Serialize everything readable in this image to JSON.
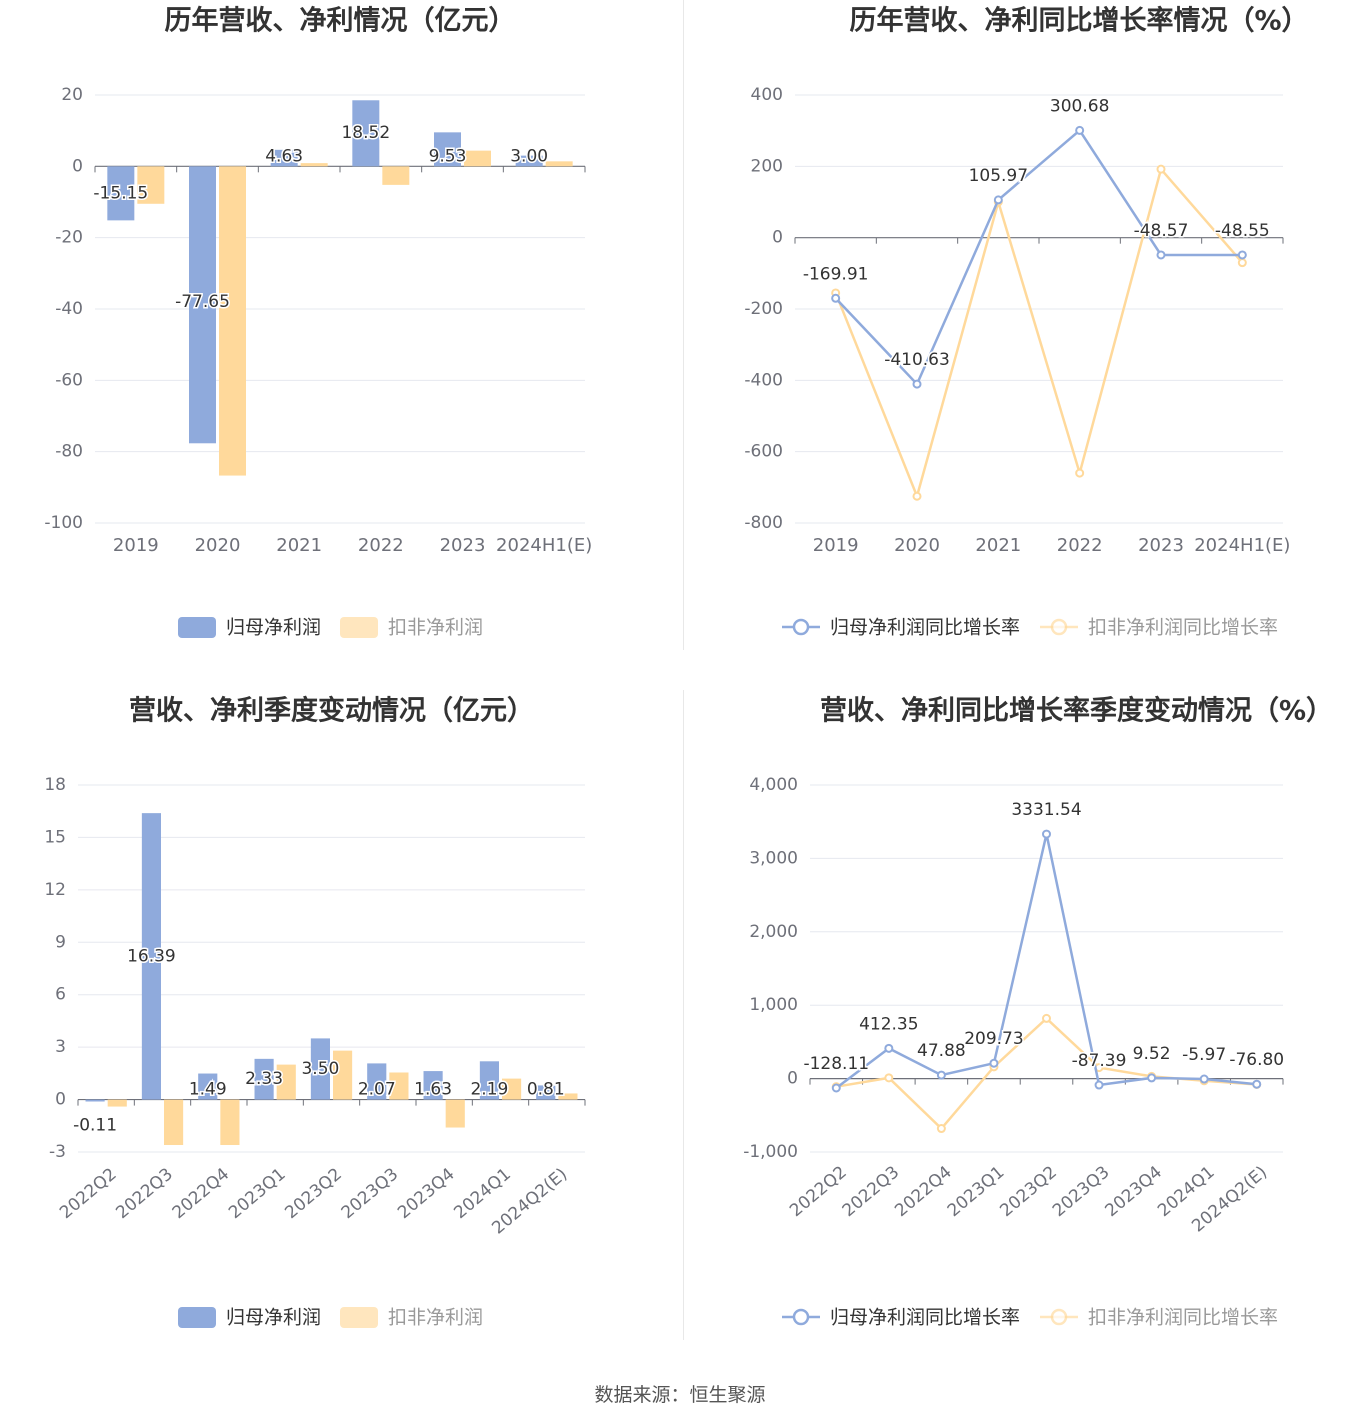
{
  "colors": {
    "series1": "#8faadc",
    "series2": "#ffd99b",
    "grid": "#e6e8ef",
    "axis": "#6e7079",
    "tick_text": "#6e7079",
    "title": "#333333",
    "label": "#333333"
  },
  "chart_data": [
    {
      "type": "bar",
      "title": "历年营收、净利情况（亿元）",
      "categories": [
        "2019",
        "2020",
        "2021",
        "2022",
        "2023",
        "2024H1(E)"
      ],
      "ylim": [
        -100,
        20
      ],
      "yticks": [
        20,
        0,
        -20,
        -40,
        -60,
        -80,
        -100
      ],
      "series": [
        {
          "name": "归母净利润",
          "values": [
            -15.15,
            -77.65,
            4.63,
            18.52,
            9.53,
            3.0
          ],
          "labels": [
            "-15.15",
            "-77.65",
            "4.63",
            "18.52",
            "9.53",
            "3.00"
          ]
        },
        {
          "name": "扣非净利润",
          "values": [
            -10.5,
            -86.7,
            0.9,
            -5.2,
            4.4,
            1.4
          ]
        }
      ]
    },
    {
      "type": "line",
      "title": "历年营收、净利同比增长率情况（%）",
      "categories": [
        "2019",
        "2020",
        "2021",
        "2022",
        "2023",
        "2024H1(E)"
      ],
      "ylim": [
        -800,
        400
      ],
      "yticks": [
        400,
        200,
        0,
        -200,
        -400,
        -600,
        -800
      ],
      "series": [
        {
          "name": "归母净利润同比增长率",
          "values": [
            -169.91,
            -410.63,
            105.97,
            300.68,
            -48.57,
            -48.55
          ],
          "labels": [
            "-169.91",
            "-410.63",
            "105.97",
            "300.68",
            "-48.57",
            "-48.55"
          ]
        },
        {
          "name": "扣非净利润同比增长率",
          "values": [
            -155,
            -725,
            100,
            -660,
            192,
            -70
          ]
        }
      ]
    },
    {
      "type": "bar",
      "title": "营收、净利季度变动情况（亿元）",
      "categories": [
        "2022Q2",
        "2022Q3",
        "2022Q4",
        "2023Q1",
        "2023Q2",
        "2023Q3",
        "2023Q4",
        "2024Q1",
        "2024Q2(E)"
      ],
      "ylim": [
        -3,
        18
      ],
      "yticks": [
        18,
        15,
        12,
        9,
        6,
        3,
        0,
        -3
      ],
      "series": [
        {
          "name": "归母净利润",
          "values": [
            -0.11,
            16.39,
            1.49,
            2.33,
            3.5,
            2.07,
            1.63,
            2.19,
            0.81
          ],
          "labels": [
            "-0.11",
            "16.39",
            "1.49",
            "2.33",
            "3.50",
            "2.07",
            "1.63",
            "2.19",
            "0.81"
          ]
        },
        {
          "name": "扣非净利润",
          "values": [
            -0.4,
            -2.6,
            -2.6,
            2.0,
            2.8,
            1.55,
            -1.6,
            1.2,
            0.35
          ]
        }
      ]
    },
    {
      "type": "line",
      "title": "营收、净利同比增长率季度变动情况（%）",
      "categories": [
        "2022Q2",
        "2022Q3",
        "2022Q4",
        "2023Q1",
        "2023Q2",
        "2023Q3",
        "2023Q4",
        "2024Q1",
        "2024Q2(E)"
      ],
      "ylim": [
        -1000,
        4000
      ],
      "yticks": [
        4000,
        3000,
        2000,
        1000,
        0,
        -1000
      ],
      "yticklabels": [
        "4,000",
        "3,000",
        "2,000",
        "1,000",
        "0",
        "-1,000"
      ],
      "series": [
        {
          "name": "归母净利润同比增长率",
          "values": [
            -128.11,
            412.35,
            47.88,
            209.73,
            3331.54,
            -87.39,
            9.52,
            -5.97,
            -76.8
          ],
          "labels": [
            "-128.11",
            "412.35",
            "47.88",
            "209.73",
            "3331.54",
            "-87.39",
            "9.52",
            "-5.97",
            "-76.80"
          ]
        },
        {
          "name": "扣非净利润同比增长率",
          "values": [
            -110,
            10,
            -680,
            160,
            820,
            150,
            30,
            -30,
            -80
          ]
        }
      ]
    }
  ],
  "footer": "数据来源：恒生聚源"
}
